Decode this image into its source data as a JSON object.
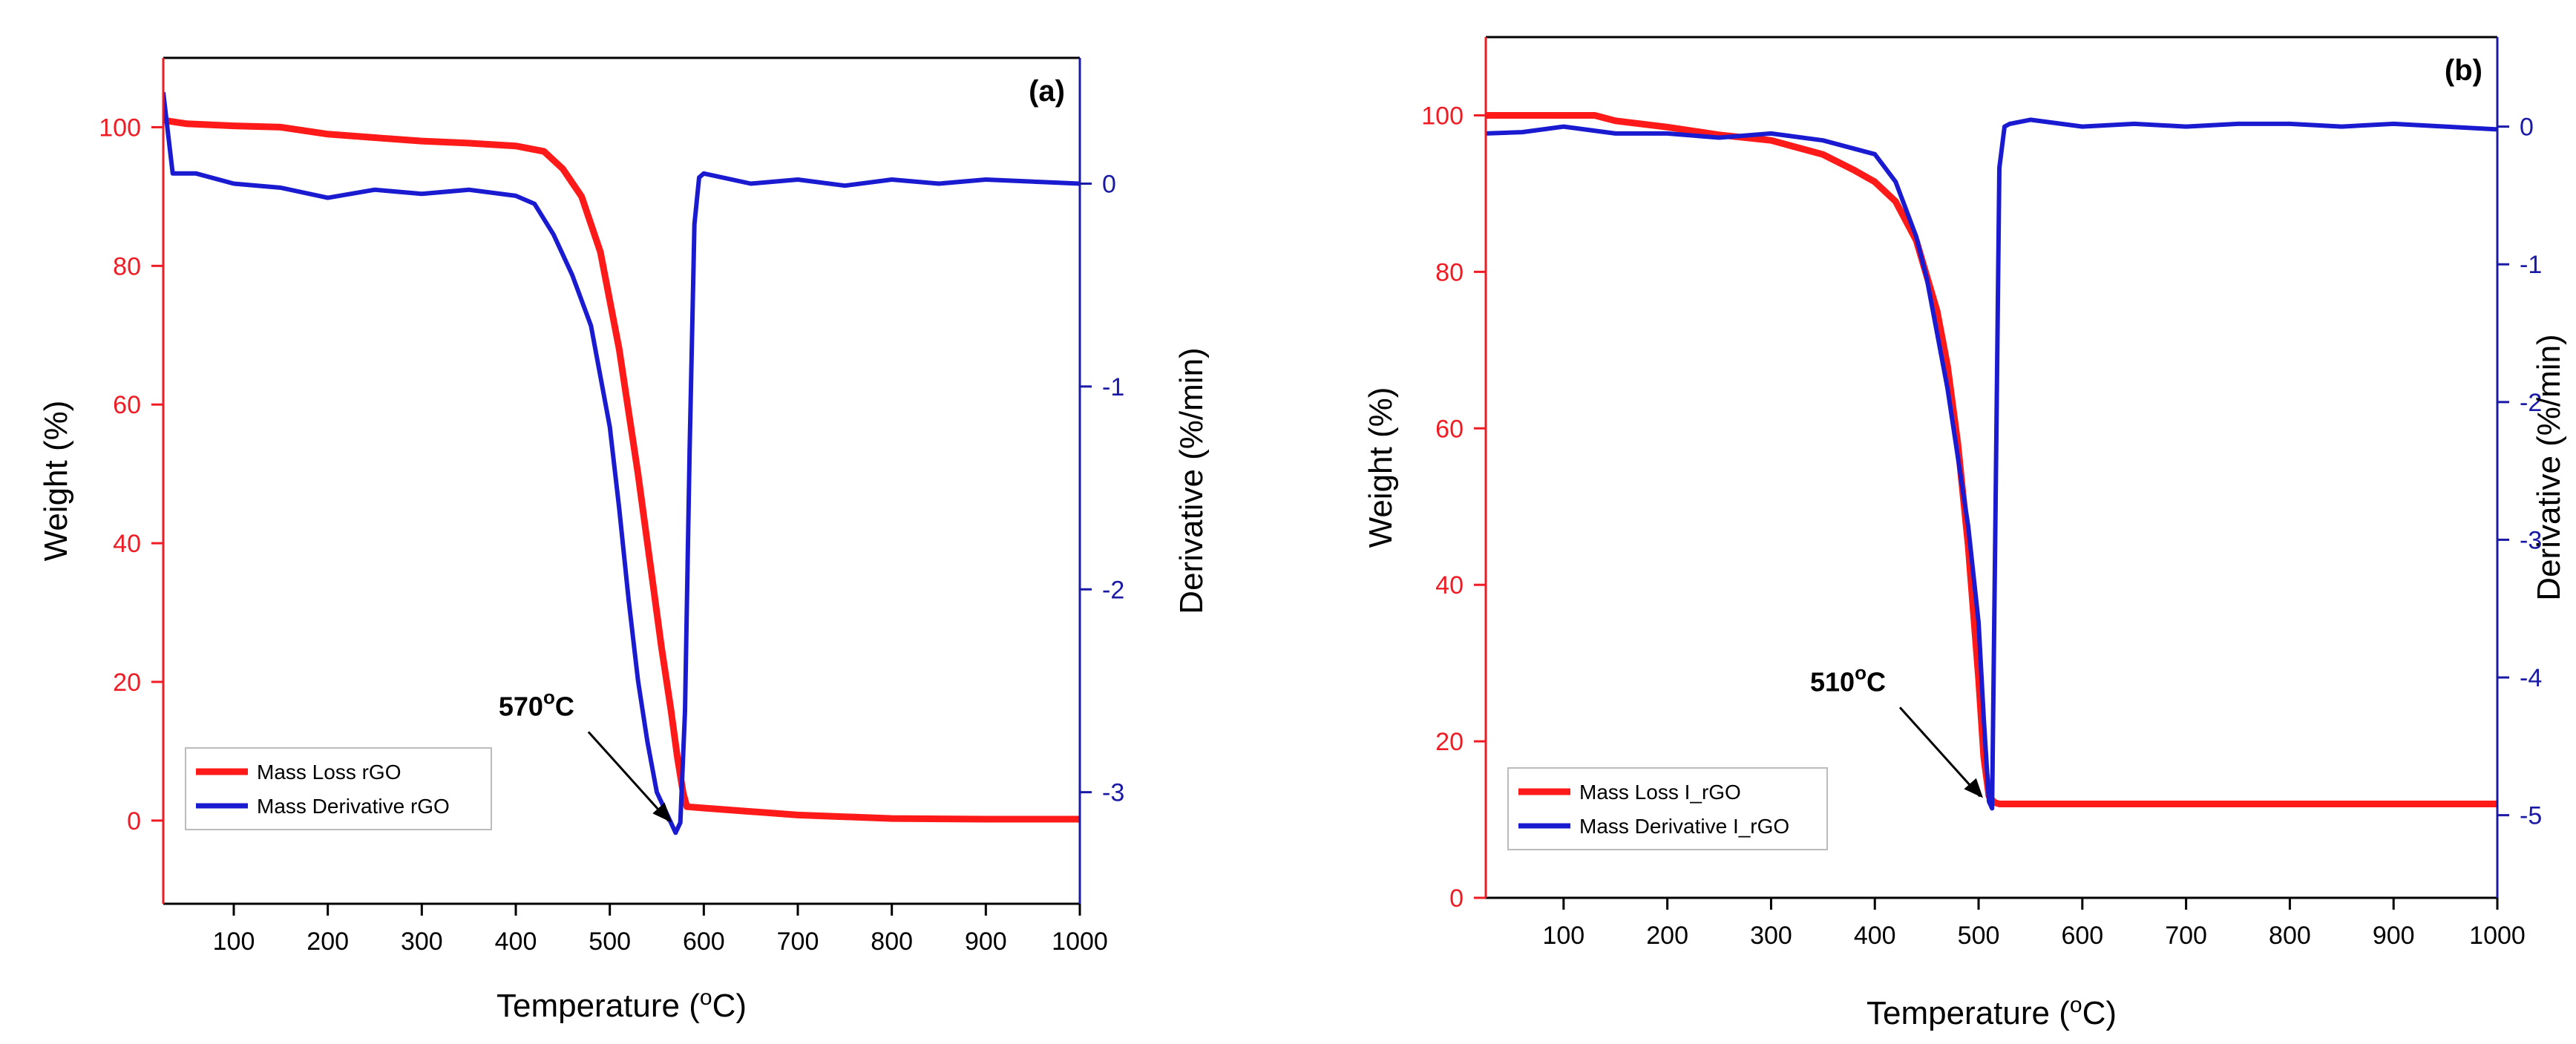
{
  "chart_data": [
    {
      "type": "line",
      "panel_label": "(a)",
      "title": "",
      "xlabel": "Temperature (",
      "xlabel_unit": "oC",
      "ylabel": "Weight (%)",
      "y2label": "Derivative (%/min)",
      "xlim": [
        25,
        1000
      ],
      "ylim": [
        -12,
        110
      ],
      "y2lim": [
        -3.55,
        0.62
      ],
      "xticks": [
        100,
        200,
        300,
        400,
        500,
        600,
        700,
        800,
        900,
        1000
      ],
      "yticks": [
        0,
        20,
        40,
        60,
        80,
        100
      ],
      "y2ticks": [
        -3,
        -2,
        -1,
        0
      ],
      "annotation": {
        "text": "570",
        "unit": "oC",
        "x": 572
      },
      "legend_position": "bottom-left",
      "colors": {
        "weight_axis": "#ee1c24",
        "derivative_axis": "#1a1aa6",
        "mass_loss": "#ff1a1a",
        "derivative": "#1a1ad1"
      },
      "series": [
        {
          "name": "Mass Loss rGO",
          "axis": "left",
          "x": [
            25,
            50,
            100,
            150,
            200,
            250,
            300,
            350,
            400,
            430,
            450,
            470,
            490,
            510,
            530,
            545,
            555,
            565,
            572,
            578,
            582,
            600,
            650,
            700,
            800,
            900,
            1000
          ],
          "y": [
            101,
            100.5,
            100.2,
            100,
            99,
            98.5,
            98,
            97.7,
            97.3,
            96.5,
            94,
            90,
            82,
            68,
            50,
            35,
            25,
            16,
            9,
            4,
            2,
            1.8,
            1.3,
            0.8,
            0.3,
            0.2,
            0.2
          ]
        },
        {
          "name": "Mass Derivative rGO",
          "axis": "right",
          "x": [
            25,
            35,
            60,
            100,
            150,
            200,
            250,
            300,
            350,
            400,
            420,
            440,
            460,
            480,
            500,
            510,
            520,
            530,
            540,
            550,
            560,
            565,
            570,
            575,
            580,
            585,
            590,
            595,
            600,
            650,
            700,
            750,
            800,
            850,
            900,
            950,
            1000
          ],
          "y": [
            0.45,
            0.05,
            0.05,
            0.0,
            -0.02,
            -0.07,
            -0.03,
            -0.05,
            -0.03,
            -0.06,
            -0.1,
            -0.25,
            -0.45,
            -0.7,
            -1.2,
            -1.6,
            -2.05,
            -2.45,
            -2.75,
            -3.0,
            -3.1,
            -3.15,
            -3.2,
            -3.15,
            -2.6,
            -1.3,
            -0.2,
            0.03,
            0.05,
            0.0,
            0.02,
            -0.01,
            0.02,
            0.0,
            0.02,
            0.01,
            0.0
          ]
        }
      ]
    },
    {
      "type": "line",
      "panel_label": "(b)",
      "title": "",
      "xlabel": "Temperature (",
      "xlabel_unit": "oC",
      "ylabel": "Weight (%)",
      "y2label": "Derivative (%/min)",
      "xlim": [
        25,
        1000
      ],
      "ylim": [
        0,
        110
      ],
      "y2lim": [
        -5.6,
        0.65
      ],
      "xticks": [
        100,
        200,
        300,
        400,
        500,
        600,
        700,
        800,
        900,
        1000
      ],
      "yticks": [
        0,
        20,
        40,
        60,
        80,
        100
      ],
      "y2ticks": [
        -5,
        -4,
        -3,
        -2,
        -1,
        0
      ],
      "annotation": {
        "text": "510",
        "unit": "oC",
        "x": 510
      },
      "legend_position": "bottom-left",
      "colors": {
        "weight_axis": "#ee1c24",
        "derivative_axis": "#1a1aa6",
        "mass_loss": "#ff1a1a",
        "derivative": "#1a1ad1"
      },
      "series": [
        {
          "name": "Mass Loss I_rGO",
          "axis": "left",
          "x": [
            25,
            60,
            100,
            130,
            150,
            200,
            250,
            300,
            350,
            380,
            400,
            420,
            440,
            460,
            470,
            480,
            490,
            500,
            505,
            510,
            515,
            520,
            530,
            600,
            700,
            800,
            900,
            1000
          ],
          "y": [
            100,
            100,
            100,
            100,
            99.3,
            98.5,
            97.5,
            96.8,
            95,
            93,
            91.5,
            89,
            84,
            75,
            68,
            58,
            45,
            28,
            18,
            13,
            12.2,
            12,
            12,
            12,
            12,
            12,
            12,
            12
          ]
        },
        {
          "name": "Mass Derivative I_rGO",
          "axis": "right",
          "x": [
            25,
            60,
            100,
            150,
            200,
            250,
            300,
            350,
            400,
            420,
            440,
            450,
            460,
            470,
            480,
            490,
            500,
            505,
            510,
            513,
            516,
            520,
            525,
            530,
            550,
            600,
            650,
            700,
            750,
            800,
            850,
            900,
            950,
            1000
          ],
          "y": [
            -0.05,
            -0.04,
            0.0,
            -0.05,
            -0.05,
            -0.08,
            -0.05,
            -0.1,
            -0.2,
            -0.4,
            -0.8,
            -1.1,
            -1.5,
            -1.9,
            -2.4,
            -2.9,
            -3.6,
            -4.3,
            -4.9,
            -4.95,
            -3.0,
            -0.3,
            0.0,
            0.02,
            0.05,
            0.0,
            0.02,
            0.0,
            0.02,
            0.02,
            0.0,
            0.02,
            0.0,
            -0.02
          ]
        }
      ]
    }
  ]
}
